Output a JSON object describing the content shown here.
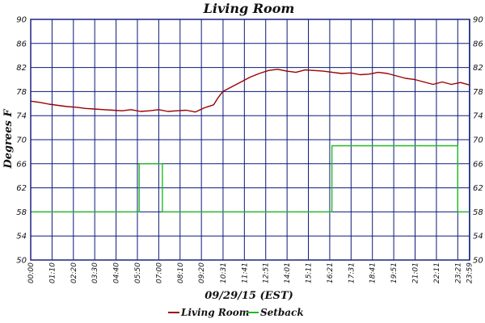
{
  "chart_data": {
    "type": "line",
    "title": "Living Room",
    "xlabel": "09/29/15 (EST)",
    "ylabel": "Degrees F",
    "ylim": [
      50,
      90
    ],
    "yticks": [
      50,
      54,
      58,
      62,
      66,
      70,
      74,
      78,
      82,
      86,
      90
    ],
    "xlim_minutes": [
      0,
      1440
    ],
    "xtick_labels": [
      "00:00",
      "01:10",
      "02:20",
      "03:30",
      "04:40",
      "05:50",
      "07:00",
      "08:10",
      "09:20",
      "10:31",
      "11:41",
      "12:51",
      "14:01",
      "15:11",
      "16:21",
      "17:31",
      "18:41",
      "19:51",
      "21:01",
      "22:11",
      "23:21",
      "23:59"
    ],
    "grid": true,
    "legend_position": "bottom-center",
    "colors": {
      "grid": "#0a1a7a",
      "axis": "#1a237e",
      "living_room": "#9b0000",
      "setback": "#22bb22"
    },
    "series": [
      {
        "name": "Living Room",
        "color": "#9b0000",
        "time": [
          "00:00",
          "00:30",
          "01:00",
          "01:30",
          "02:00",
          "02:30",
          "03:00",
          "03:30",
          "04:00",
          "04:30",
          "05:00",
          "05:30",
          "06:00",
          "06:30",
          "07:00",
          "07:30",
          "08:00",
          "08:30",
          "09:00",
          "09:30",
          "10:00",
          "10:15",
          "10:30",
          "11:00",
          "11:30",
          "12:00",
          "12:30",
          "13:00",
          "13:30",
          "14:00",
          "14:30",
          "15:00",
          "15:30",
          "16:00",
          "16:30",
          "17:00",
          "17:30",
          "18:00",
          "18:30",
          "19:00",
          "19:30",
          "20:00",
          "20:30",
          "21:00",
          "21:30",
          "22:00",
          "22:30",
          "23:00",
          "23:30",
          "23:59"
        ],
        "values": [
          76.4,
          76.2,
          75.9,
          75.7,
          75.5,
          75.4,
          75.2,
          75.1,
          75.0,
          74.9,
          74.8,
          75.0,
          74.7,
          74.8,
          75.0,
          74.7,
          74.8,
          74.9,
          74.6,
          75.3,
          75.8,
          77.0,
          78.0,
          78.8,
          79.6,
          80.4,
          81.0,
          81.5,
          81.7,
          81.4,
          81.2,
          81.6,
          81.5,
          81.4,
          81.2,
          81.0,
          81.1,
          80.8,
          80.9,
          81.2,
          81.0,
          80.6,
          80.2,
          80.0,
          79.6,
          79.2,
          79.6,
          79.2,
          79.5,
          79.1
        ]
      },
      {
        "name": "Setback",
        "color": "#22bb22",
        "time": [
          "00:00",
          "05:56",
          "05:56",
          "07:12",
          "07:12",
          "16:28",
          "16:28",
          "23:21",
          "23:21",
          "23:59"
        ],
        "values": [
          58,
          58,
          66,
          66,
          58,
          58,
          69,
          69,
          58,
          58
        ]
      }
    ]
  }
}
